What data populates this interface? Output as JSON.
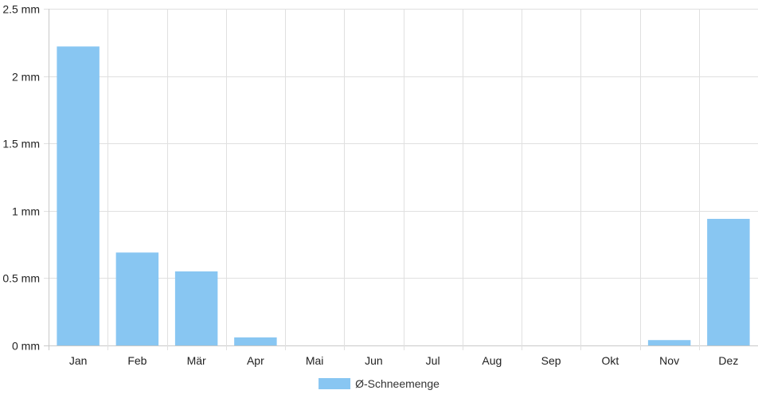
{
  "chart_data": {
    "type": "bar",
    "categories": [
      "Jan",
      "Feb",
      "Mär",
      "Apr",
      "Mai",
      "Jun",
      "Jul",
      "Aug",
      "Sep",
      "Okt",
      "Nov",
      "Dez"
    ],
    "series": [
      {
        "name": "Ø-Schneemenge",
        "values": [
          2.22,
          0.69,
          0.55,
          0.06,
          0,
          0,
          0,
          0,
          0,
          0,
          0.04,
          0.94
        ],
        "color": "#88c6f2"
      }
    ],
    "ylim": [
      0,
      2.5
    ],
    "yticks": [
      0,
      0.5,
      1,
      1.5,
      2,
      2.5
    ],
    "ytick_labels": [
      "0 mm",
      "0.5 mm",
      "1 mm",
      "1.5 mm",
      "2 mm",
      "2.5 mm"
    ],
    "grid": true,
    "legend_position": "bottom-center",
    "grid_color": "#e0e0e0",
    "axis_color": "#c8c8c8"
  }
}
